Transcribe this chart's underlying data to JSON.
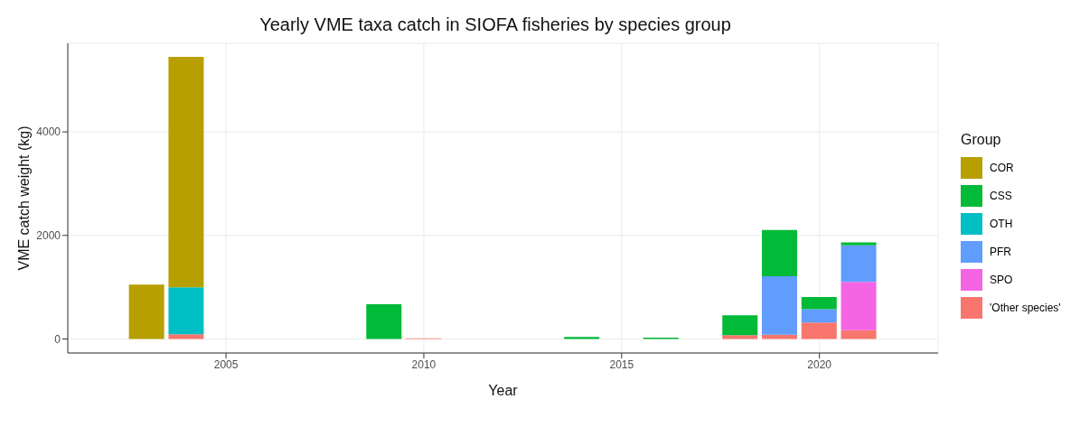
{
  "chart_data": {
    "type": "bar",
    "title": "Yearly VME taxa catch in SIOFA fisheries by species group",
    "xlabel": "Year",
    "ylabel": "VME catch weight (kg)",
    "legend_title": "Group",
    "stacked": true,
    "x": [
      2003,
      2004,
      2009,
      2010,
      2014,
      2016,
      2018,
      2019,
      2020,
      2021
    ],
    "series": [
      {
        "name": "'Other species'",
        "color": "#f8766d",
        "values": [
          null,
          90,
          null,
          15,
          null,
          null,
          75,
          85,
          320,
          170
        ]
      },
      {
        "name": "SPO",
        "color": "#f564e3",
        "values": [
          null,
          null,
          null,
          null,
          null,
          null,
          null,
          null,
          null,
          935
        ]
      },
      {
        "name": "PFR",
        "color": "#619cff",
        "values": [
          null,
          null,
          null,
          null,
          null,
          null,
          null,
          1125,
          255,
          705
        ]
      },
      {
        "name": "OTH",
        "color": "#00bfc4",
        "values": [
          null,
          910,
          null,
          null,
          null,
          null,
          null,
          null,
          null,
          null
        ]
      },
      {
        "name": "CSS",
        "color": "#00ba38",
        "values": [
          null,
          null,
          670,
          null,
          40,
          25,
          385,
          895,
          235,
          55
        ]
      },
      {
        "name": "COR",
        "color": "#b79f00",
        "values": [
          1050,
          4450,
          null,
          null,
          null,
          null,
          null,
          null,
          null,
          null
        ]
      }
    ],
    "xlim": [
      2001,
      2023
    ],
    "xticks": [
      2005,
      2010,
      2015,
      2020
    ],
    "ylim": [
      -270,
      5710
    ],
    "yticks": [
      0,
      2000,
      4000
    ],
    "grid": true,
    "legend": "right"
  }
}
